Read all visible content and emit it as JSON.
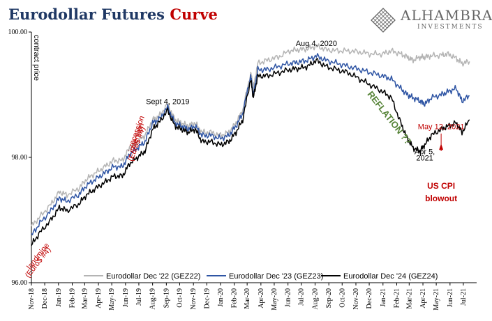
{
  "header": {
    "title_main": "Eurodollar Futures",
    "title_accent": "Curve",
    "logo_name": "ALHAMBRA",
    "logo_sub": "INVESTMENTS"
  },
  "colors": {
    "title": "#1f3864",
    "accent": "#c00000",
    "gez22": "#b4b4b4",
    "gez23": "#2f55a4",
    "gez24": "#000000",
    "reflation": "#548235"
  },
  "chart_data": {
    "type": "line",
    "title": "Eurodollar Futures Curve",
    "ylabel": "contract price",
    "ylim": [
      96.0,
      100.0
    ],
    "yticks": [
      "96.00",
      "98.00",
      "100.00"
    ],
    "grid": false,
    "legend_position": "bottom",
    "x_range": [
      "Nov-18",
      "Jul-21"
    ],
    "x_tick_labels": [
      "Nov-18",
      "Dec-18",
      "Jan-19",
      "Feb-19",
      "Mar-19",
      "Apr-19",
      "May-19",
      "Jun-19",
      "Jul-19",
      "Aug-19",
      "Sep-19",
      "Oct-19",
      "Nov-19",
      "Dec-19",
      "Jan-20",
      "Feb-20",
      "Mar-20",
      "Apr-20",
      "May-20",
      "Jun-20",
      "Jul-20",
      "Aug-20",
      "Sep-20",
      "Oct-20",
      "Nov-20",
      "Dec-20",
      "Jan-21",
      "Feb-21",
      "Mar-21",
      "Apr-21",
      "May-21",
      "Jun-21",
      "Jul-21"
    ],
    "series": [
      {
        "name": "Eurodollar Dec '22 (GEZ22)",
        "color": "#b4b4b4",
        "x": [
          "2018-11-01",
          "2018-11-20",
          "2018-12-15",
          "2019-01-03",
          "2019-01-20",
          "2019-02-15",
          "2019-03-05",
          "2019-03-25",
          "2019-04-15",
          "2019-05-05",
          "2019-05-25",
          "2019-06-10",
          "2019-06-28",
          "2019-07-15",
          "2019-08-01",
          "2019-08-15",
          "2019-09-04",
          "2019-09-20",
          "2019-10-05",
          "2019-10-20",
          "2019-11-05",
          "2019-11-20",
          "2019-12-10",
          "2020-01-01",
          "2020-01-20",
          "2020-02-05",
          "2020-02-20",
          "2020-03-09",
          "2020-03-15",
          "2020-03-25",
          "2020-04-15",
          "2020-05-10",
          "2020-06-05",
          "2020-06-25",
          "2020-07-15",
          "2020-08-04",
          "2020-08-25",
          "2020-09-20",
          "2020-10-15",
          "2020-11-10",
          "2020-12-05",
          "2020-12-31",
          "2021-01-20",
          "2021-02-10",
          "2021-02-25",
          "2021-03-10",
          "2021-03-25",
          "2021-04-05",
          "2021-04-20",
          "2021-05-12",
          "2021-05-28",
          "2021-06-15",
          "2021-06-28",
          "2021-07-15"
        ],
        "values": [
          96.9,
          97.05,
          97.25,
          97.45,
          97.4,
          97.5,
          97.65,
          97.75,
          97.85,
          97.95,
          97.95,
          98.15,
          98.25,
          98.35,
          98.6,
          98.65,
          98.85,
          98.6,
          98.55,
          98.5,
          98.55,
          98.4,
          98.4,
          98.35,
          98.4,
          98.55,
          98.75,
          99.35,
          99.1,
          99.5,
          99.55,
          99.6,
          99.7,
          99.72,
          99.73,
          99.78,
          99.72,
          99.7,
          99.7,
          99.68,
          99.65,
          99.65,
          99.7,
          99.65,
          99.6,
          99.55,
          99.6,
          99.6,
          99.62,
          99.63,
          99.65,
          99.58,
          99.5,
          99.53
        ]
      },
      {
        "name": "Eurodollar Dec '23 (GEZ23)",
        "color": "#2f55a4",
        "x": [
          "2018-11-01",
          "2018-11-20",
          "2018-12-15",
          "2019-01-03",
          "2019-01-20",
          "2019-02-15",
          "2019-03-05",
          "2019-03-25",
          "2019-04-15",
          "2019-05-05",
          "2019-05-25",
          "2019-06-10",
          "2019-06-28",
          "2019-07-15",
          "2019-08-01",
          "2019-08-15",
          "2019-09-04",
          "2019-09-20",
          "2019-10-05",
          "2019-10-20",
          "2019-11-05",
          "2019-11-20",
          "2019-12-10",
          "2020-01-01",
          "2020-01-20",
          "2020-02-05",
          "2020-02-20",
          "2020-03-09",
          "2020-03-15",
          "2020-03-25",
          "2020-04-15",
          "2020-05-10",
          "2020-06-05",
          "2020-06-25",
          "2020-07-15",
          "2020-08-04",
          "2020-08-25",
          "2020-09-20",
          "2020-10-15",
          "2020-11-10",
          "2020-12-05",
          "2020-12-31",
          "2021-01-20",
          "2021-02-10",
          "2021-02-25",
          "2021-03-10",
          "2021-03-25",
          "2021-04-05",
          "2021-04-20",
          "2021-05-12",
          "2021-05-28",
          "2021-06-15",
          "2021-06-28",
          "2021-07-15"
        ],
        "values": [
          96.75,
          96.95,
          97.15,
          97.35,
          97.3,
          97.4,
          97.55,
          97.65,
          97.75,
          97.85,
          97.85,
          98.05,
          98.15,
          98.25,
          98.55,
          98.6,
          98.8,
          98.55,
          98.5,
          98.45,
          98.5,
          98.35,
          98.35,
          98.3,
          98.35,
          98.5,
          98.7,
          99.3,
          99.0,
          99.4,
          99.4,
          99.45,
          99.5,
          99.52,
          99.55,
          99.62,
          99.55,
          99.5,
          99.45,
          99.4,
          99.35,
          99.3,
          99.25,
          99.1,
          99.0,
          98.95,
          98.9,
          98.85,
          98.95,
          99.0,
          99.05,
          99.1,
          98.9,
          98.98
        ]
      },
      {
        "name": "Eurodollar Dec '24 (GEZ24)",
        "color": "#000000",
        "x": [
          "2018-11-01",
          "2018-11-20",
          "2018-12-15",
          "2019-01-03",
          "2019-01-20",
          "2019-02-15",
          "2019-03-05",
          "2019-03-25",
          "2019-04-15",
          "2019-05-05",
          "2019-05-25",
          "2019-06-10",
          "2019-06-28",
          "2019-07-15",
          "2019-08-01",
          "2019-08-15",
          "2019-09-04",
          "2019-09-20",
          "2019-10-05",
          "2019-10-20",
          "2019-11-05",
          "2019-11-20",
          "2019-12-10",
          "2020-01-01",
          "2020-01-20",
          "2020-02-05",
          "2020-02-20",
          "2020-03-09",
          "2020-03-15",
          "2020-03-25",
          "2020-04-15",
          "2020-05-10",
          "2020-06-05",
          "2020-06-25",
          "2020-07-15",
          "2020-08-04",
          "2020-08-25",
          "2020-09-20",
          "2020-10-15",
          "2020-11-10",
          "2020-12-05",
          "2020-12-31",
          "2021-01-20",
          "2021-02-10",
          "2021-02-25",
          "2021-03-10",
          "2021-03-25",
          "2021-04-05",
          "2021-04-20",
          "2021-05-12",
          "2021-05-28",
          "2021-06-15",
          "2021-06-28",
          "2021-07-15"
        ],
        "values": [
          96.6,
          96.8,
          97.0,
          97.2,
          97.15,
          97.25,
          97.4,
          97.5,
          97.6,
          97.7,
          97.7,
          97.9,
          98.0,
          98.1,
          98.45,
          98.55,
          98.75,
          98.5,
          98.45,
          98.4,
          98.45,
          98.25,
          98.25,
          98.2,
          98.25,
          98.4,
          98.6,
          99.25,
          98.95,
          99.3,
          99.3,
          99.35,
          99.4,
          99.42,
          99.45,
          99.55,
          99.45,
          99.4,
          99.35,
          99.25,
          99.15,
          99.05,
          98.95,
          98.55,
          98.3,
          98.15,
          98.1,
          98.2,
          98.35,
          98.45,
          98.5,
          98.55,
          98.4,
          98.6
        ]
      }
    ],
    "annotations": [
      {
        "text": "Aug 4, 2020",
        "date": "2020-08-04",
        "y": 99.78,
        "style": "black"
      },
      {
        "text": "Sept 4, 2019",
        "date": "2019-09-04",
        "y": 98.85,
        "style": "black"
      },
      {
        "text": "Apr 5,",
        "date": "2021-04-05",
        "y": 98.05,
        "style": "black"
      },
      {
        "text": "2021",
        "date": "2021-04-05",
        "y": 97.95,
        "style": "black"
      },
      {
        "text": "REFLATION ??",
        "date": "2021-01-10",
        "y": 98.6,
        "style": "green"
      },
      {
        "text": "May 12, 2021",
        "date": "2021-05-12",
        "y": 98.45,
        "style": "red"
      },
      {
        "text": "US CPI",
        "date": "2021-05-12",
        "y": 97.5,
        "style": "redbold"
      },
      {
        "text": "blowout",
        "date": "2021-05-12",
        "y": 97.3,
        "style": "redbold"
      },
      {
        "text": "recession",
        "date": "2019-07-01",
        "y": 98.4,
        "style": "red"
      },
      {
        "text": "inversion",
        "date": "2019-07-01",
        "y": 98.3,
        "style": "red"
      },
      {
        "text": "(Euro$ #4)",
        "date": "2019-07-01",
        "y": 98.2,
        "style": "red"
      },
      {
        "text": "landmine",
        "date": "2018-11-20",
        "y": 96.4,
        "style": "red"
      },
      {
        "text": "(Euro$ #4)",
        "date": "2018-11-20",
        "y": 96.3,
        "style": "red"
      }
    ]
  }
}
